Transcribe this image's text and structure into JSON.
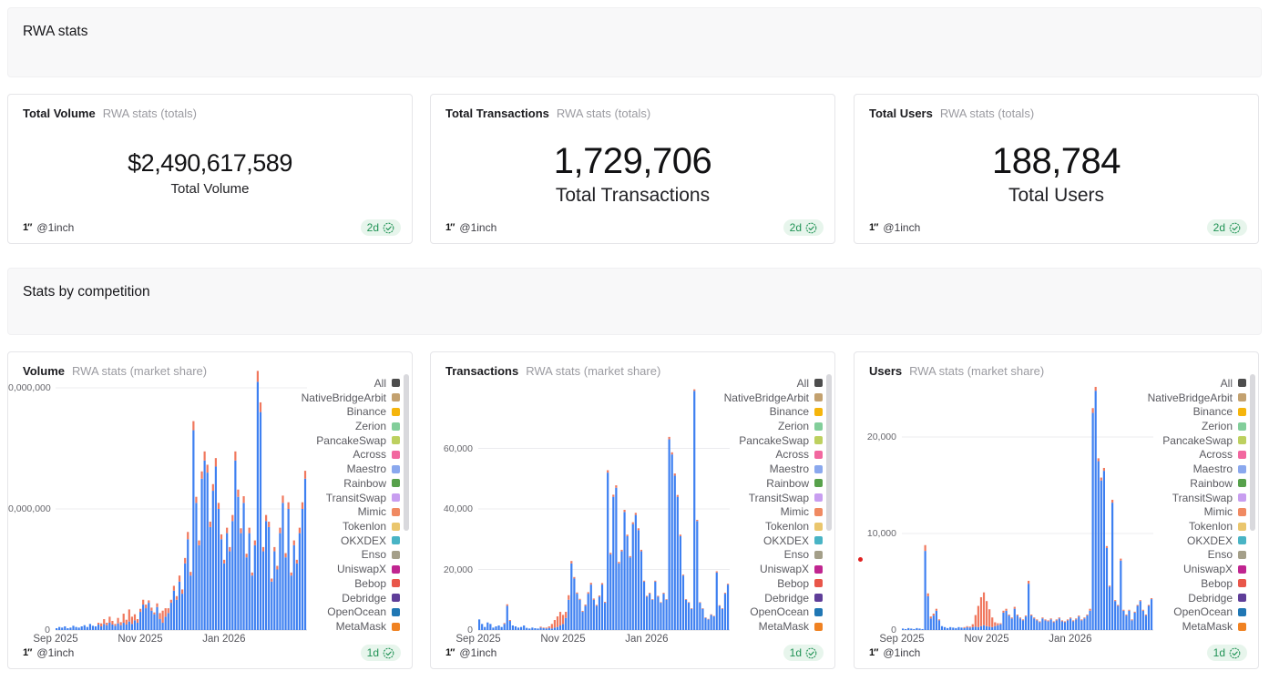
{
  "sections": {
    "header1": {
      "title": "RWA stats"
    },
    "header2": {
      "title": "Stats by competition"
    }
  },
  "stat_cards": [
    {
      "title": "Total Volume",
      "subtitle": "RWA stats (totals)",
      "value": "$2,490,617,589",
      "label": "Total Volume",
      "author": "@1inch",
      "badge": "2d"
    },
    {
      "title": "Total Transactions",
      "subtitle": "RWA stats (totals)",
      "value": "1,729,706",
      "label": "Total Transactions",
      "author": "@1inch",
      "badge": "2d"
    },
    {
      "title": "Total Users",
      "subtitle": "RWA stats (totals)",
      "value": "188,784",
      "label": "Total Users",
      "author": "@1inch",
      "badge": "2d"
    }
  ],
  "chart_cards": [
    {
      "title": "Volume",
      "subtitle": "RWA stats (market share)",
      "author": "@1inch",
      "badge": "1d"
    },
    {
      "title": "Transactions",
      "subtitle": "RWA stats (market share)",
      "author": "@1inch",
      "badge": "1d"
    },
    {
      "title": "Users",
      "subtitle": "RWA stats (market share)",
      "author": "@1inch",
      "badge": "1d"
    }
  ],
  "legend": {
    "items": [
      {
        "label": "All",
        "color": "#4d4d4d"
      },
      {
        "label": "NativeBridgeArbit",
        "color": "#c3a16f"
      },
      {
        "label": "Binance",
        "color": "#f5b50c"
      },
      {
        "label": "Zerion",
        "color": "#82ce9a"
      },
      {
        "label": "PancakeSwap",
        "color": "#bdd05f"
      },
      {
        "label": "Across",
        "color": "#f2679f"
      },
      {
        "label": "Maestro",
        "color": "#8aa8ee"
      },
      {
        "label": "Rainbow",
        "color": "#57a14b"
      },
      {
        "label": "TransitSwap",
        "color": "#c89ef0"
      },
      {
        "label": "Mimic",
        "color": "#f08a62"
      },
      {
        "label": "Tokenlon",
        "color": "#eac66d"
      },
      {
        "label": "OKXDEX",
        "color": "#49b4c5"
      },
      {
        "label": "Enso",
        "color": "#a49f89"
      },
      {
        "label": "UniswapX",
        "color": "#c02590"
      },
      {
        "label": "Bebop",
        "color": "#e9564a"
      },
      {
        "label": "Debridge",
        "color": "#5f3e99"
      },
      {
        "label": "OpenOcean",
        "color": "#2077b4"
      },
      {
        "label": "MetaMask",
        "color": "#f08222"
      }
    ]
  },
  "chart_data": [
    {
      "type": "bar",
      "title": "Volume",
      "subtitle": "RWA stats (market share)",
      "stacked": true,
      "unit": "USD millions (axis labels clipped at card edge)",
      "ylim": [
        0,
        40
      ],
      "y_ticks": [
        {
          "label": "0,000,000",
          "value": 40,
          "clipped": true
        },
        {
          "label": "0,000,000",
          "value": 20,
          "clipped": true
        },
        {
          "label": "0",
          "value": 0
        }
      ],
      "x_ticks": [
        {
          "label": "Sep 2025",
          "pos": 0.0
        },
        {
          "label": "Nov 2025",
          "pos": 0.337
        },
        {
          "label": "Jan 2026",
          "pos": 0.67
        }
      ],
      "series": [
        {
          "name": "primary-blue",
          "color": "#3e80f1",
          "values": [
            0.3,
            0.5,
            0.4,
            0.6,
            0.3,
            0.4,
            0.7,
            0.5,
            0.4,
            0.6,
            0.8,
            0.5,
            1.0,
            0.7,
            0.6,
            0.9,
            0.6,
            1.0,
            0.8,
            1.2,
            0.9,
            0.7,
            1.1,
            0.8,
            1.2,
            0.9,
            1.4,
            1.0,
            1.6,
            1.2,
            3.0,
            4.2,
            3.6,
            4.5,
            3.2,
            2.6,
            3.8,
            1.8,
            1.2,
            2.2,
            2.8,
            4.5,
            6.5,
            5.0,
            8.0,
            6.0,
            11,
            15,
            9,
            33,
            21,
            14,
            25,
            28,
            26,
            17,
            23,
            27,
            20,
            15,
            11,
            16,
            13,
            18,
            28,
            22,
            16,
            21,
            12,
            16,
            9,
            14,
            41,
            36,
            13,
            18,
            17,
            8,
            13,
            10,
            16,
            21,
            12,
            20,
            9,
            14,
            11,
            16,
            20,
            25
          ]
        },
        {
          "name": "coral-red",
          "color": "#f0785e",
          "values": [
            0,
            0,
            0,
            0,
            0,
            0,
            0,
            0,
            0,
            0,
            0,
            0,
            0,
            0,
            0,
            0.3,
            0.5,
            0.8,
            0.4,
            1.0,
            0.6,
            0.3,
            0.9,
            0.5,
            1.5,
            0.8,
            2.0,
            1.2,
            1.0,
            0.6,
            0.5,
            0.8,
            0.6,
            0.4,
            0.5,
            0.3,
            0.6,
            1.0,
            2.0,
            1.4,
            0.8,
            0.5,
            0.8,
            0.6,
            1.0,
            0.7,
            0.9,
            1.2,
            0.6,
            1.5,
            1.0,
            0.8,
            1.2,
            1.5,
            1.3,
            0.9,
            1.1,
            1.4,
            1.0,
            0.8,
            0.6,
            0.9,
            0.7,
            1.0,
            1.5,
            1.2,
            0.8,
            1.1,
            0.6,
            0.9,
            0.5,
            0.8,
            1.8,
            1.6,
            0.7,
            1.0,
            0.9,
            0.5,
            0.7,
            0.6,
            0.9,
            1.2,
            0.7,
            1.1,
            0.5,
            0.8,
            0.6,
            0.9,
            1.1,
            1.3
          ]
        }
      ]
    },
    {
      "type": "bar",
      "title": "Transactions",
      "subtitle": "RWA stats (market share)",
      "stacked": true,
      "unit": "transactions per day",
      "ylim": [
        0,
        80000
      ],
      "y_ticks": [
        {
          "label": "60,000",
          "value": 60000
        },
        {
          "label": "40,000",
          "value": 40000
        },
        {
          "label": "20,000",
          "value": 20000
        },
        {
          "label": "0",
          "value": 0
        }
      ],
      "x_ticks": [
        {
          "label": "Sep 2025",
          "pos": 0.0
        },
        {
          "label": "Nov 2025",
          "pos": 0.337
        },
        {
          "label": "Jan 2026",
          "pos": 0.67
        }
      ],
      "series": [
        {
          "name": "primary-blue",
          "color": "#3e80f1",
          "values": [
            3500,
            2000,
            1000,
            2500,
            2000,
            800,
            1200,
            1500,
            1000,
            2000,
            8000,
            3000,
            1500,
            1200,
            800,
            1000,
            1500,
            700,
            500,
            800,
            600,
            500,
            800,
            600,
            500,
            700,
            500,
            800,
            1000,
            1500,
            2000,
            4000,
            10000,
            22000,
            17000,
            12000,
            10000,
            6000,
            8000,
            12000,
            15000,
            10000,
            8000,
            11000,
            15000,
            9000,
            52000,
            25000,
            44000,
            47000,
            22000,
            26000,
            39000,
            31000,
            24000,
            35000,
            38000,
            33000,
            26000,
            16000,
            11000,
            12000,
            10000,
            16000,
            11000,
            9000,
            12000,
            10000,
            63000,
            58000,
            51000,
            44000,
            31000,
            18000,
            10000,
            9000,
            7000,
            79000,
            36000,
            9000,
            7000,
            4000,
            3500,
            5000,
            4500,
            19000,
            8000,
            7000,
            12000,
            15000
          ]
        },
        {
          "name": "coral-red",
          "color": "#f0785e",
          "values": [
            0,
            0,
            0,
            0,
            0,
            0,
            0,
            0,
            0,
            300,
            500,
            300,
            0,
            0,
            0,
            0,
            0,
            0,
            0,
            0,
            0,
            0,
            300,
            200,
            300,
            500,
            1500,
            2500,
            3500,
            4500,
            3000,
            2000,
            1500,
            800,
            500,
            400,
            300,
            300,
            400,
            500,
            600,
            400,
            300,
            400,
            500,
            300,
            800,
            500,
            700,
            800,
            500,
            500,
            700,
            500,
            400,
            600,
            700,
            600,
            500,
            300,
            300,
            300,
            200,
            300,
            300,
            200,
            300,
            200,
            800,
            700,
            700,
            600,
            500,
            300,
            200,
            200,
            200,
            500,
            400,
            200,
            200,
            100,
            100,
            200,
            100,
            400,
            200,
            200,
            300,
            300
          ]
        }
      ]
    },
    {
      "type": "bar",
      "title": "Users",
      "subtitle": "RWA stats (market share)",
      "stacked": true,
      "unit": "users per day",
      "ylim": [
        0,
        25100
      ],
      "y_ticks": [
        {
          "label": "20,000",
          "value": 20000
        },
        {
          "label": "10,000",
          "value": 10000
        },
        {
          "label": "0",
          "value": 0
        }
      ],
      "x_ticks": [
        {
          "label": "Sep 2025",
          "pos": 0.0
        },
        {
          "label": "Nov 2025",
          "pos": 0.337
        },
        {
          "label": "Jan 2026",
          "pos": 0.67
        }
      ],
      "stray_point": {
        "value": 7400,
        "color": "#e02020"
      },
      "series": [
        {
          "name": "primary-blue",
          "color": "#3e80f1",
          "values": [
            150,
            100,
            200,
            150,
            100,
            200,
            150,
            100,
            8200,
            3500,
            1200,
            1500,
            2000,
            1000,
            400,
            300,
            200,
            300,
            250,
            200,
            300,
            250,
            200,
            300,
            250,
            300,
            350,
            300,
            400,
            500,
            400,
            350,
            300,
            400,
            500,
            600,
            1800,
            2000,
            1500,
            1200,
            2200,
            1500,
            1200,
            1000,
            1400,
            4800,
            1500,
            1200,
            1000,
            800,
            1200,
            1000,
            900,
            1100,
            800,
            1000,
            1200,
            900,
            800,
            1000,
            1200,
            900,
            1100,
            1400,
            1000,
            1200,
            1500,
            2000,
            22500,
            24800,
            17500,
            15500,
            16500,
            8500,
            4500,
            13200,
            3000,
            2500,
            7200,
            2000,
            1500,
            2000,
            1000,
            1800,
            2500,
            3000,
            2000,
            1500,
            2500,
            3200
          ]
        },
        {
          "name": "coral-red",
          "color": "#f0785e",
          "values": [
            0,
            0,
            0,
            0,
            0,
            0,
            0,
            0,
            600,
            300,
            200,
            200,
            200,
            100,
            0,
            0,
            0,
            0,
            0,
            0,
            0,
            0,
            100,
            100,
            100,
            300,
            1200,
            2200,
            3000,
            3400,
            2600,
            1800,
            1000,
            400,
            200,
            100,
            200,
            200,
            100,
            100,
            200,
            100,
            100,
            100,
            100,
            300,
            100,
            100,
            100,
            100,
            100,
            100,
            100,
            100,
            100,
            100,
            100,
            100,
            100,
            100,
            100,
            100,
            100,
            100,
            100,
            100,
            100,
            200,
            500,
            400,
            300,
            300,
            300,
            200,
            100,
            300,
            100,
            100,
            200,
            100,
            100,
            100,
            100,
            100,
            100,
            100,
            100,
            100,
            100,
            100
          ]
        }
      ]
    }
  ],
  "colors": {
    "bar_blue": "#3e80f1",
    "bar_red": "#f0785e",
    "badge_bg": "#e7f5ec",
    "badge_text": "#1f9254",
    "grid": "#ececef",
    "zero_line": "#d5d5d8"
  }
}
